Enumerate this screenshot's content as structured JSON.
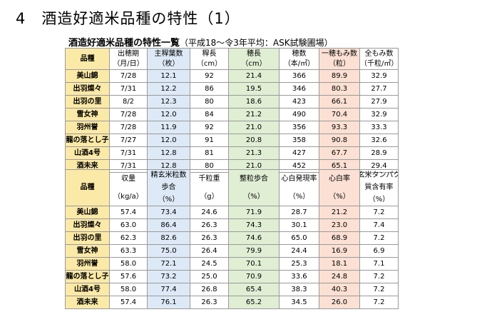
{
  "page": {
    "title": "4　酒造好適米品種の特性（1）",
    "subtitle_main": "酒造好適米品種の特性一覧",
    "subtitle_note": "（平成18～令3年平均：ASK試験圃場）"
  },
  "table1": {
    "columns": [
      {
        "label": "品種",
        "unit": ""
      },
      {
        "label": "出穂期",
        "unit": "（月/日）"
      },
      {
        "label": "主稈葉数",
        "unit": "（枚）"
      },
      {
        "label": "稈長",
        "unit": "（cm）"
      },
      {
        "label": "穂長",
        "unit": "（cm）"
      },
      {
        "label": "穂数",
        "unit": "（本/㎡）"
      },
      {
        "label": "一穂もみ数",
        "unit": "（粒）"
      },
      {
        "label": "全もみ数",
        "unit": "（千粒/㎡）"
      }
    ],
    "rows": [
      [
        "美山錦",
        "7/28",
        "12.1",
        "92",
        "21.4",
        "366",
        "89.9",
        "32.9"
      ],
      [
        "出羽燦々",
        "7/31",
        "12.2",
        "86",
        "19.5",
        "346",
        "80.3",
        "27.7"
      ],
      [
        "出羽の里",
        "8/2",
        "12.3",
        "80",
        "18.6",
        "423",
        "66.1",
        "27.9"
      ],
      [
        "雪女神",
        "7/28",
        "12.0",
        "84",
        "21.2",
        "490",
        "70.4",
        "32.9"
      ],
      [
        "羽州誉",
        "7/28",
        "11.9",
        "92",
        "21.0",
        "356",
        "93.3",
        "33.3"
      ],
      [
        "龍の落とし子",
        "7/27",
        "12.0",
        "91",
        "20.8",
        "358",
        "90.8",
        "32.6"
      ],
      [
        "山酒4号",
        "7/31",
        "12.8",
        "81",
        "21.3",
        "427",
        "67.7",
        "28.9"
      ],
      [
        "酒未来",
        "7/31",
        "12.8",
        "80",
        "21.0",
        "452",
        "65.1",
        "29.4"
      ]
    ]
  },
  "table2": {
    "columns": [
      {
        "label": "品種",
        "label2": "",
        "unit": ""
      },
      {
        "label": "収量",
        "label2": "",
        "unit": "（kg/a）"
      },
      {
        "label": "精玄米粒数",
        "label2": "歩合",
        "unit": "（%）"
      },
      {
        "label": "千粒重",
        "label2": "",
        "unit": "（g）"
      },
      {
        "label": "整粒歩合",
        "label2": "",
        "unit": "（%）"
      },
      {
        "label": "心白発現率",
        "label2": "",
        "unit": "（%）"
      },
      {
        "label": "心白率",
        "label2": "",
        "unit": "（%）"
      },
      {
        "label": "玄米タンパク",
        "label2": "質含有率",
        "unit": "（%）"
      }
    ],
    "rows": [
      [
        "美山錦",
        "57.4",
        "73.4",
        "24.6",
        "71.9",
        "28.7",
        "21.2",
        "7.2"
      ],
      [
        "出羽燦々",
        "63.0",
        "86.4",
        "26.3",
        "74.3",
        "30.1",
        "23.0",
        "7.4"
      ],
      [
        "出羽の里",
        "62.3",
        "82.6",
        "26.3",
        "74.6",
        "65.0",
        "68.9",
        "7.2"
      ],
      [
        "雪女神",
        "63.3",
        "75.0",
        "26.4",
        "79.9",
        "24.4",
        "16.9",
        "6.9"
      ],
      [
        "羽州誉",
        "58.0",
        "72.1",
        "24.5",
        "70.1",
        "25.3",
        "18.1",
        "7.1"
      ],
      [
        "龍の落とし子",
        "57.6",
        "73.2",
        "25.0",
        "70.9",
        "33.6",
        "24.8",
        "7.2"
      ],
      [
        "山酒4号",
        "58.0",
        "77.4",
        "26.8",
        "65.4",
        "38.3",
        "40.3",
        "7.2"
      ],
      [
        "酒未来",
        "57.4",
        "76.1",
        "26.3",
        "65.2",
        "34.5",
        "26.0",
        "7.2"
      ]
    ]
  },
  "colors": {
    "variety": "#fbe9a7",
    "blue": "#dde9f6",
    "green": "#e0eed4",
    "pink": "#fbe0d3"
  }
}
